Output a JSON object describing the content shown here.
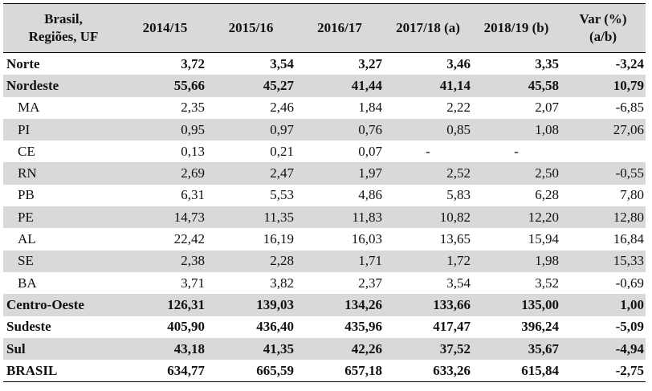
{
  "header": {
    "col0_line1": "Brasil,",
    "col0_line2": "Regiões, UF",
    "col1": "2014/15",
    "col2": "2015/16",
    "col3": "2016/17",
    "col4": "2017/18 (a)",
    "col5": "2018/19 (b)",
    "col6_line1": "Var (%)",
    "col6_line2": "(a/b)"
  },
  "rows": [
    {
      "label": "Norte",
      "v": [
        "3,72",
        "3,54",
        "3,27",
        "3,46",
        "3,35",
        "-3,24"
      ]
    },
    {
      "label": "Nordeste",
      "v": [
        "55,66",
        "45,27",
        "41,44",
        "41,14",
        "45,58",
        "10,79"
      ]
    },
    {
      "label": "MA",
      "v": [
        "2,35",
        "2,46",
        "1,84",
        "2,22",
        "2,07",
        "-6,85"
      ]
    },
    {
      "label": "PI",
      "v": [
        "0,95",
        "0,97",
        "0,76",
        "0,85",
        "1,08",
        "27,06"
      ]
    },
    {
      "label": "CE",
      "v": [
        "0,13",
        "0,21",
        "0,07",
        "-",
        "-",
        ""
      ]
    },
    {
      "label": "RN",
      "v": [
        "2,69",
        "2,47",
        "1,97",
        "2,52",
        "2,50",
        "-0,55"
      ]
    },
    {
      "label": "PB",
      "v": [
        "6,31",
        "5,53",
        "4,86",
        "5,83",
        "6,28",
        "7,80"
      ]
    },
    {
      "label": "PE",
      "v": [
        "14,73",
        "11,35",
        "11,83",
        "10,82",
        "12,20",
        "12,80"
      ]
    },
    {
      "label": "AL",
      "v": [
        "22,42",
        "16,19",
        "16,03",
        "13,65",
        "15,94",
        "16,84"
      ]
    },
    {
      "label": "SE",
      "v": [
        "2,38",
        "2,28",
        "1,71",
        "1,72",
        "1,98",
        "15,33"
      ]
    },
    {
      "label": "BA",
      "v": [
        "3,71",
        "3,82",
        "2,37",
        "3,54",
        "3,52",
        "-0,69"
      ]
    },
    {
      "label": "Centro-Oeste",
      "v": [
        "126,31",
        "139,03",
        "134,26",
        "133,66",
        "135,00",
        "1,00"
      ]
    },
    {
      "label": "Sudeste",
      "v": [
        "405,90",
        "436,40",
        "435,96",
        "417,47",
        "396,24",
        "-5,09"
      ]
    },
    {
      "label": "Sul",
      "v": [
        "43,18",
        "41,35",
        "42,26",
        "37,52",
        "35,67",
        "-4,94"
      ]
    },
    {
      "label": "BRASIL",
      "v": [
        "634,77",
        "665,59",
        "657,18",
        "633,26",
        "615,84",
        "-2,75"
      ]
    }
  ],
  "colors": {
    "header_bg": "#d9d9d9",
    "stripe_bg": "#d9d9d9",
    "text": "#111111"
  }
}
